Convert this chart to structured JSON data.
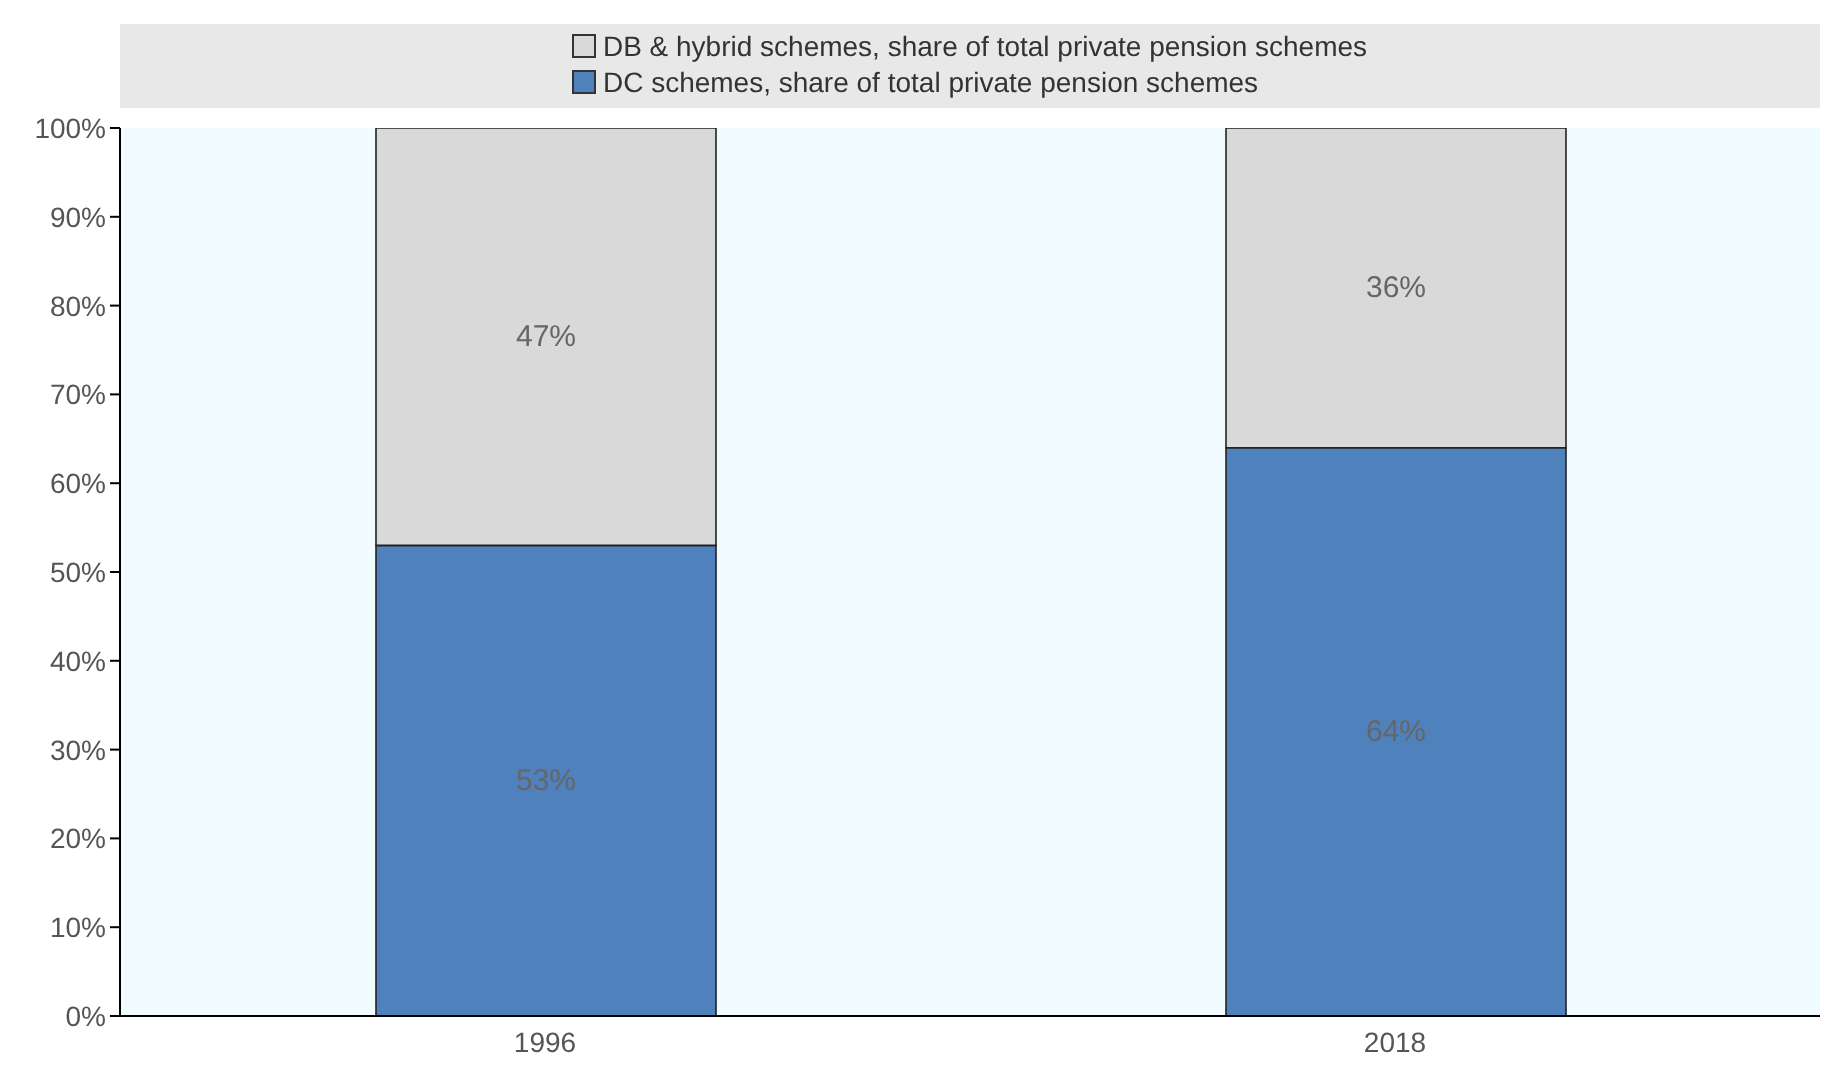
{
  "chart_data": {
    "type": "bar",
    "stacked": true,
    "categories": [
      "1996",
      "2018"
    ],
    "series": [
      {
        "name": "DC schemes, share of total private pension schemes",
        "color": "#4f81bd",
        "values": [
          53,
          64
        ],
        "value_labels": [
          "53%",
          "64%"
        ]
      },
      {
        "name": "DB & hybrid schemes, share of total private pension schemes",
        "color": "#d9d9d9",
        "values": [
          47,
          36
        ],
        "value_labels": [
          "47%",
          "36%"
        ]
      }
    ],
    "ylim": [
      0,
      100
    ],
    "yticks": [
      {
        "value": 0,
        "label": "0%"
      },
      {
        "value": 10,
        "label": "10%"
      },
      {
        "value": 20,
        "label": "20%"
      },
      {
        "value": 30,
        "label": "30%"
      },
      {
        "value": 40,
        "label": "40%"
      },
      {
        "value": 50,
        "label": "50%"
      },
      {
        "value": 60,
        "label": "60%"
      },
      {
        "value": 70,
        "label": "70%"
      },
      {
        "value": 80,
        "label": "80%"
      },
      {
        "value": 90,
        "label": "90%"
      },
      {
        "value": 100,
        "label": "100%"
      }
    ],
    "legend": "top"
  }
}
